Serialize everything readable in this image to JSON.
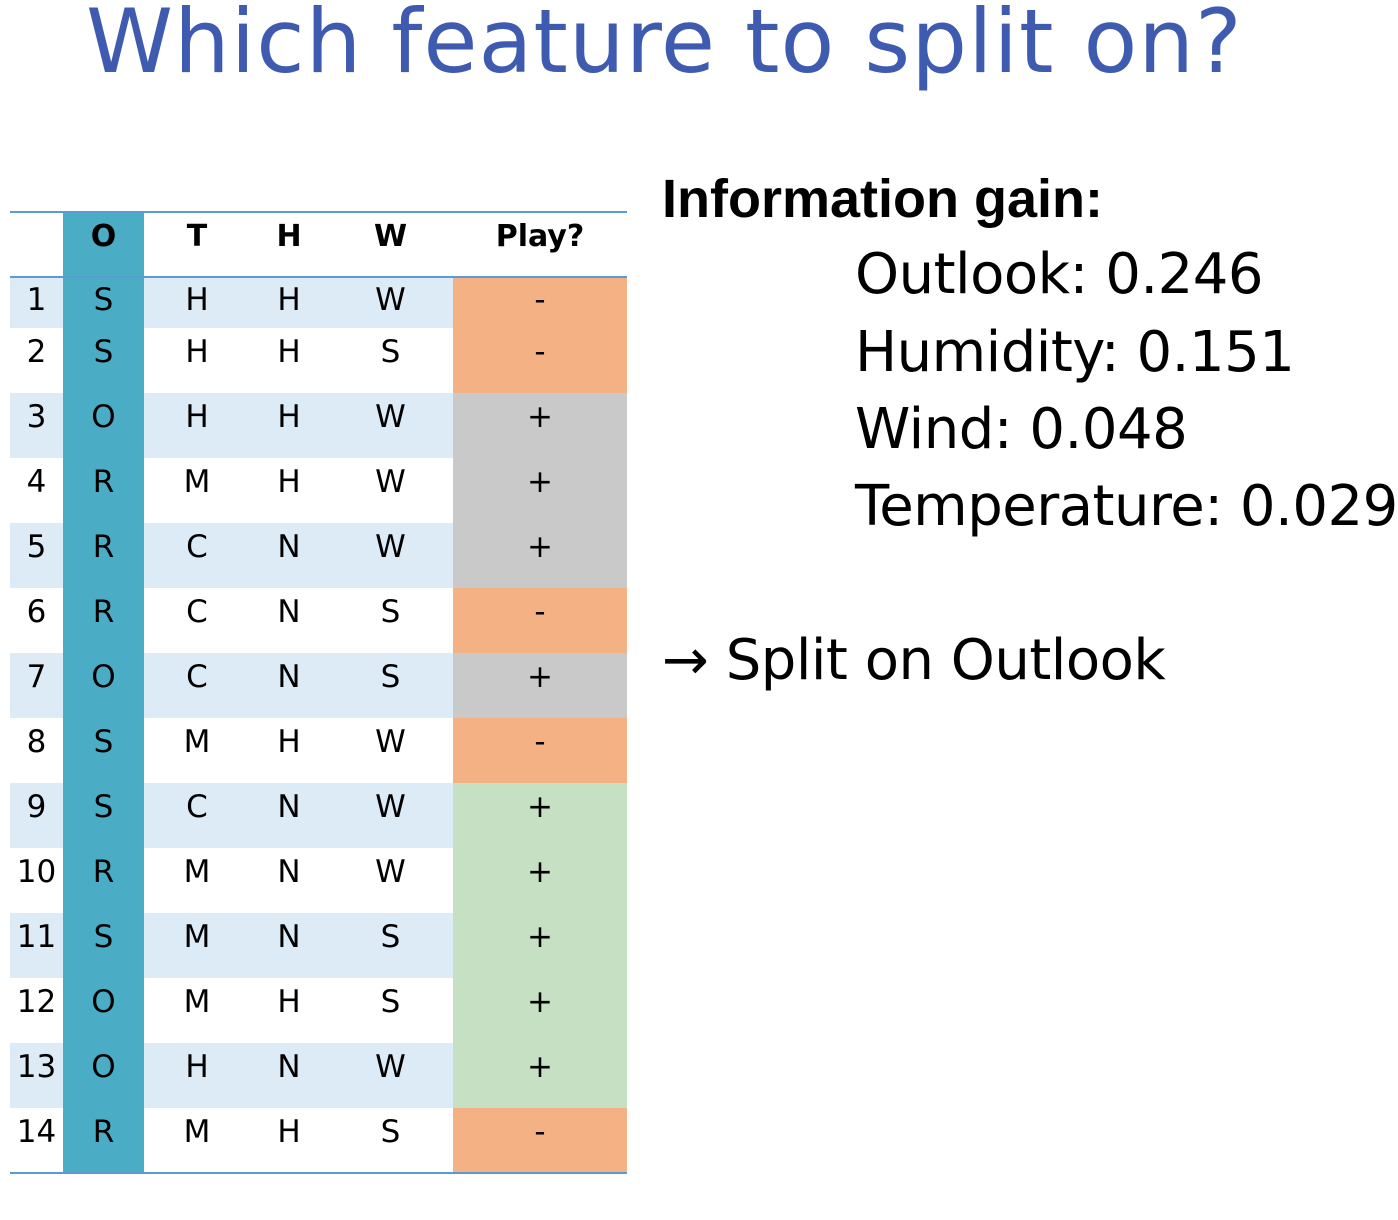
{
  "title": "Which feature to split on?",
  "table": {
    "headers": [
      "",
      "O",
      "T",
      "H",
      "W",
      "Play?"
    ],
    "rows": [
      {
        "num": "1",
        "o": "S",
        "t": "H",
        "h": "H",
        "w": "W",
        "play": "-"
      },
      {
        "num": "2",
        "o": "S",
        "t": "H",
        "h": "H",
        "w": "S",
        "play": "-"
      },
      {
        "num": "3",
        "o": "O",
        "t": "H",
        "h": "H",
        "w": "W",
        "play": "+"
      },
      {
        "num": "4",
        "o": "R",
        "t": "M",
        "h": "H",
        "w": "W",
        "play": "+"
      },
      {
        "num": "5",
        "o": "R",
        "t": "C",
        "h": "N",
        "w": "W",
        "play": "+"
      },
      {
        "num": "6",
        "o": "R",
        "t": "C",
        "h": "N",
        "w": "S",
        "play": "-"
      },
      {
        "num": "7",
        "o": "O",
        "t": "C",
        "h": "N",
        "w": "S",
        "play": "+"
      },
      {
        "num": "8",
        "o": "S",
        "t": "M",
        "h": "H",
        "w": "W",
        "play": "-"
      },
      {
        "num": "9",
        "o": "S",
        "t": "C",
        "h": "N",
        "w": "W",
        "play": "+"
      },
      {
        "num": "10",
        "o": "R",
        "t": "M",
        "h": "N",
        "w": "W",
        "play": "+"
      },
      {
        "num": "11",
        "o": "S",
        "t": "M",
        "h": "N",
        "w": "S",
        "play": "+"
      },
      {
        "num": "12",
        "o": "O",
        "t": "M",
        "h": "H",
        "w": "S",
        "play": "+"
      },
      {
        "num": "13",
        "o": "O",
        "t": "H",
        "h": "N",
        "w": "W",
        "play": "+"
      },
      {
        "num": "14",
        "o": "R",
        "t": "M",
        "h": "H",
        "w": "S",
        "play": "-"
      }
    ]
  },
  "colors": {
    "title": "#3f5bb0",
    "outlook_column": "#4bacc6",
    "row_shade": "#ddebf7",
    "play_no": "#f4b183",
    "play_outlook_overcast": "#c9c9c9",
    "play_yes": "#c5e0c3",
    "rule": "#5b9bd5"
  },
  "info_gain": {
    "heading": "Information gain:",
    "items": [
      "Outlook:  0.246",
      "Humidity: 0.151",
      "Wind: 0.048",
      "Temperature: 0.029"
    ]
  },
  "conclusion": "→ Split on Outlook"
}
